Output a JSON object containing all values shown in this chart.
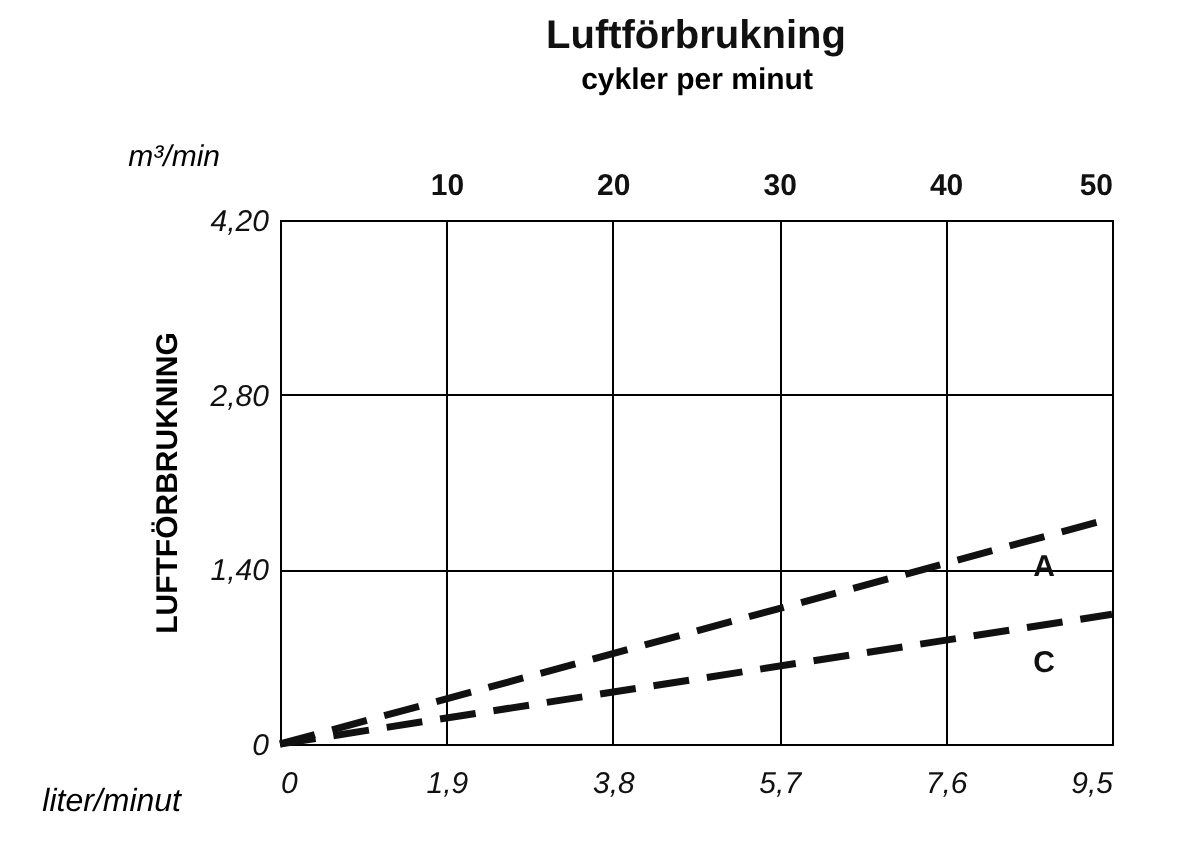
{
  "chart_data": {
    "type": "line",
    "title": "Luftförbrukning",
    "x2label": "cykler per minut",
    "xlabel": "liter/minut",
    "ylabel": "LUFTFÖRBRUKNING",
    "annotations": [
      "m³/min"
    ],
    "x": [
      0,
      9.5
    ],
    "series": [
      {
        "name": "A",
        "color": "#111111",
        "values": [
          0,
          1.81
        ]
      },
      {
        "name": "C",
        "color": "#111111",
        "values": [
          0,
          1.04
        ]
      }
    ],
    "xlim": [
      0,
      9.5
    ],
    "xticks": [
      0,
      {
        "value": 1.9,
        "label": "1,9"
      },
      {
        "value": 3.8,
        "label": "3,8"
      },
      {
        "value": 5.7,
        "label": "5,7"
      },
      {
        "value": 7.6,
        "label": "7,6"
      },
      {
        "value": 9.5,
        "label": "9,5"
      }
    ],
    "x2lim": [
      0,
      50
    ],
    "x2ticks": [
      10,
      20,
      30,
      40,
      50
    ],
    "ylim": [
      0,
      4.2
    ],
    "yticks": [
      0,
      {
        "value": 1.4,
        "label": "1,40"
      },
      {
        "value": 2.8,
        "label": "2,80"
      },
      {
        "value": 4.2,
        "label": "4,20"
      }
    ],
    "grid": true,
    "legend": false,
    "marker": "none",
    "line_style": "dashed"
  }
}
